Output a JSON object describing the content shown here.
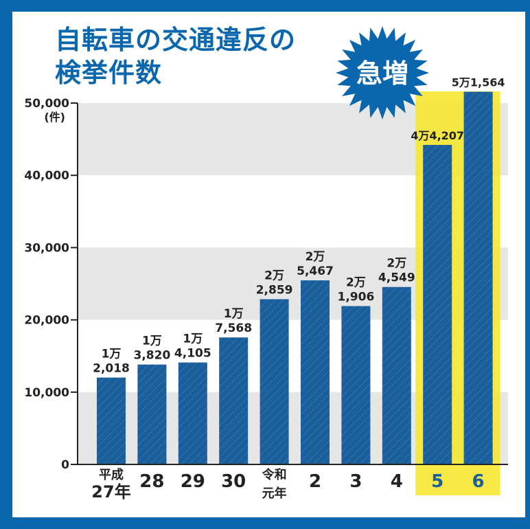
{
  "colors": {
    "frame": "#0a67ad",
    "bar": "#1a5e9c",
    "highlight": "#f5e631",
    "band": "#e6e6e6"
  },
  "chart_data": {
    "type": "bar",
    "title": "自転車の交通違反の\n検挙件数",
    "unit": "(件)",
    "badge": "急増",
    "categories": [
      "平成\n27年",
      "28",
      "29",
      "30",
      "令和\n元年",
      "2",
      "3",
      "4",
      "5",
      "6"
    ],
    "values": [
      12018,
      13820,
      14105,
      17568,
      22859,
      25467,
      21906,
      24549,
      44207,
      51564
    ],
    "data_labels": [
      "1万\n2,018",
      "1万\n3,820",
      "1万\n4,105",
      "1万\n7,568",
      "2万\n2,859",
      "2万\n5,467",
      "2万\n1,906",
      "2万\n4,549",
      "4万4,207",
      "5万1,564"
    ],
    "highlighted": [
      "5",
      "6"
    ],
    "yticks": [
      "0",
      "10,000",
      "20,000",
      "30,000",
      "40,000",
      "50,000"
    ],
    "ylim": [
      0,
      50000
    ],
    "grid": "alternating bands"
  }
}
